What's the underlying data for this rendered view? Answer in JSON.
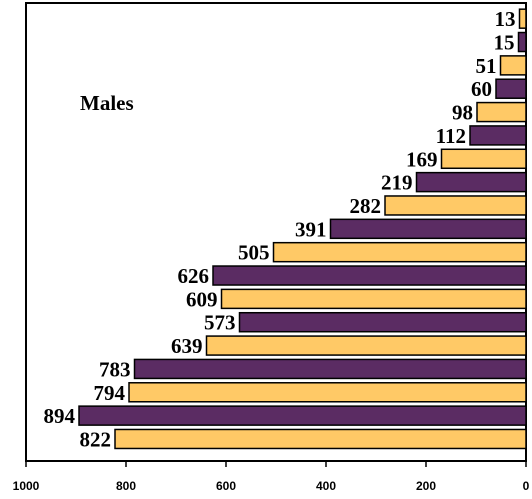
{
  "chart_data": {
    "type": "bar",
    "orientation": "horizontal",
    "direction": "right-to-left",
    "title": "Males",
    "xlim": [
      1000,
      0
    ],
    "x_ticks": [
      "1000",
      "800",
      "600",
      "400",
      "200",
      "0"
    ],
    "x_tick_values": [
      1000,
      800,
      600,
      400,
      200,
      0
    ],
    "values": [
      13,
      15,
      51,
      60,
      98,
      112,
      169,
      219,
      282,
      391,
      505,
      626,
      609,
      573,
      639,
      783,
      794,
      894,
      822
    ],
    "value_labels": [
      "13",
      "15",
      "51",
      "60",
      "98",
      "112",
      "169",
      "219",
      "282",
      "391",
      "505",
      "626",
      "609",
      "573",
      "639",
      "783",
      "794",
      "894",
      "822"
    ],
    "grid": false,
    "colors": {
      "purple": "#5b2c63",
      "orange": "#ffc966",
      "edge": "#000000"
    }
  }
}
